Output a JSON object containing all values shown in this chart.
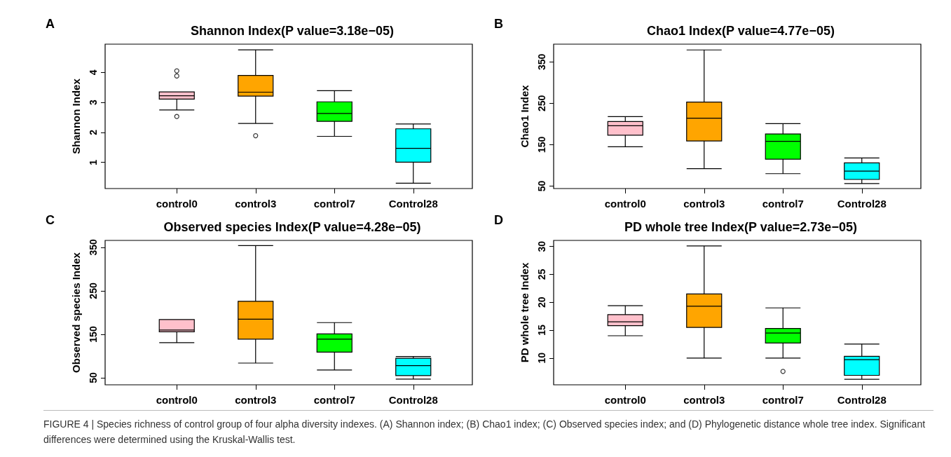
{
  "chart_data": [
    {
      "type": "box",
      "title": "Shannon Index(P value=3.18e−05)",
      "ylabel": "Shannon Index",
      "annotations": [
        "A"
      ],
      "categories": [
        "control0",
        "control3",
        "control7",
        "Control28"
      ],
      "colors": [
        "#ffc0cb",
        "#ffa500",
        "#00ff00",
        "#00ffff"
      ],
      "boxes": [
        {
          "low": 2.75,
          "q1": 3.11,
          "median": 3.22,
          "q3": 3.35,
          "high": 3.35,
          "outliers": [
            4.05,
            3.88,
            2.53
          ]
        },
        {
          "low": 2.3,
          "q1": 3.21,
          "median": 3.34,
          "q3": 3.9,
          "high": 4.75,
          "outliers": [
            1.89
          ]
        },
        {
          "low": 1.87,
          "q1": 2.37,
          "median": 2.63,
          "q3": 3.02,
          "high": 3.39
        },
        {
          "low": 0.31,
          "q1": 1.01,
          "median": 1.47,
          "q3": 2.12,
          "high": 2.28
        }
      ],
      "ylim": [
        0.13,
        4.94
      ],
      "yticks": [
        1,
        2,
        3,
        4
      ],
      "grid": false,
      "marker": "circle"
    },
    {
      "type": "box",
      "title": "Chao1 Index(P value=4.77e−05)",
      "ylabel": "Chao1 Index",
      "annotations": [
        "B"
      ],
      "categories": [
        "control0",
        "control3",
        "control7",
        "Control28"
      ],
      "colors": [
        "#ffc0cb",
        "#ffa500",
        "#00ff00",
        "#00ffff"
      ],
      "boxes": [
        {
          "low": 145,
          "q1": 173,
          "median": 196,
          "q3": 206,
          "high": 218
        },
        {
          "low": 92,
          "q1": 159,
          "median": 214,
          "q3": 253,
          "high": 379
        },
        {
          "low": 80,
          "q1": 115,
          "median": 158,
          "q3": 176,
          "high": 201
        },
        {
          "low": 56,
          "q1": 66,
          "median": 86,
          "q3": 106,
          "high": 118
        }
      ],
      "ylim": [
        44,
        393
      ],
      "yticks": [
        50,
        150,
        250,
        350
      ],
      "grid": false
    },
    {
      "type": "box",
      "title": "Observed species Index(P value=4.28e−05)",
      "ylabel": "Observed species Index",
      "annotations": [
        "C"
      ],
      "categories": [
        "control0",
        "control3",
        "control7",
        "Control28"
      ],
      "colors": [
        "#ffc0cb",
        "#ffa500",
        "#00ff00",
        "#00ffff"
      ],
      "boxes": [
        {
          "low": 131,
          "q1": 156,
          "median": 160,
          "q3": 184,
          "high": 184
        },
        {
          "low": 84,
          "q1": 139,
          "median": 185,
          "q3": 226,
          "high": 354
        },
        {
          "low": 68,
          "q1": 109,
          "median": 139,
          "q3": 151,
          "high": 177
        },
        {
          "low": 47,
          "q1": 55,
          "median": 78,
          "q3": 95,
          "high": 99
        }
      ],
      "ylim": [
        34,
        366
      ],
      "yticks": [
        50,
        150,
        250,
        350
      ],
      "grid": false
    },
    {
      "type": "box",
      "title": "PD whole tree Index(P value=2.73e−05)",
      "ylabel": "PD whole tree Index",
      "annotations": [
        "D",
        "FIGURE 4 | Species richness of control group of four alpha diversity indexes. (A) Shannon index; (B) Chao1 index; (C) Observed species index; and (D) Phylogenetic distance whole tree index. Significant differences were determined using the Kruskal-Wallis test."
      ],
      "categories": [
        "control0",
        "control3",
        "control7",
        "Control28"
      ],
      "colors": [
        "#ffc0cb",
        "#ffa500",
        "#00ff00",
        "#00ffff"
      ],
      "boxes": [
        {
          "low": 14.0,
          "q1": 15.8,
          "median": 16.5,
          "q3": 17.8,
          "high": 19.4
        },
        {
          "low": 10.0,
          "q1": 15.5,
          "median": 19.3,
          "q3": 21.5,
          "high": 30.1
        },
        {
          "low": 10.0,
          "q1": 12.7,
          "median": 14.5,
          "q3": 15.3,
          "high": 19.0,
          "outliers": [
            7.6
          ]
        },
        {
          "low": 6.2,
          "q1": 6.9,
          "median": 9.7,
          "q3": 10.3,
          "high": 12.5
        }
      ],
      "ylim": [
        5.2,
        31.1
      ],
      "yticks": [
        10,
        15,
        20,
        25,
        30
      ],
      "grid": false,
      "marker": "circle"
    }
  ]
}
